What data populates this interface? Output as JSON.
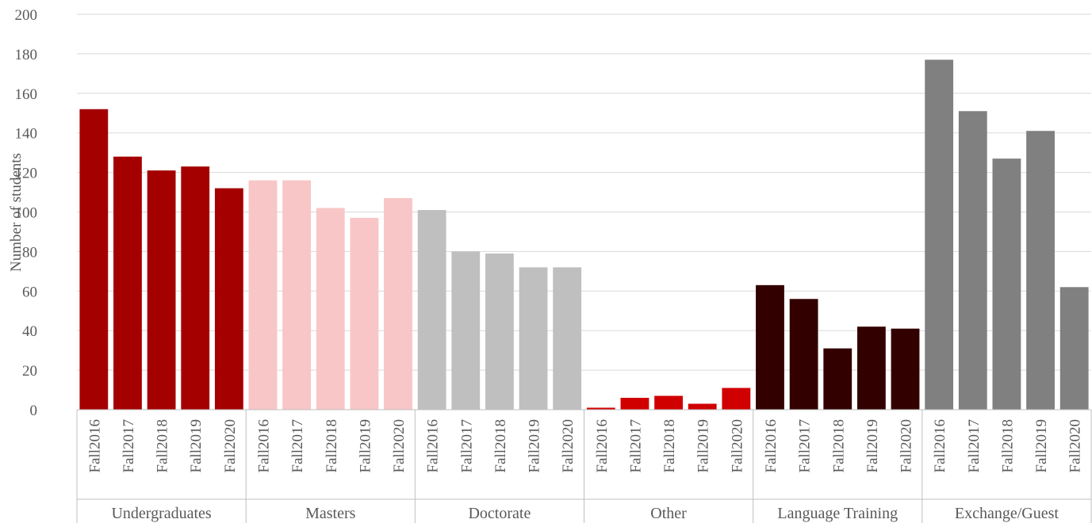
{
  "chart_data": {
    "type": "bar",
    "title": "",
    "xlabel": "",
    "ylabel": "Number of students",
    "ylim": [
      0,
      200
    ],
    "yticks": [
      0,
      20,
      40,
      60,
      80,
      100,
      120,
      140,
      160,
      180,
      200
    ],
    "grid": true,
    "legend": "none",
    "categories": [
      "Fall2016",
      "Fall2017",
      "Fall2018",
      "Fall2019",
      "Fall2020"
    ],
    "groups": [
      {
        "name": "Undergraduates",
        "color": "#A50000",
        "values": [
          152,
          128,
          121,
          123,
          112
        ]
      },
      {
        "name": "Masters",
        "color": "#F8C6C6",
        "values": [
          116,
          116,
          102,
          97,
          107
        ]
      },
      {
        "name": "Doctorate",
        "color": "#BFBFBF",
        "values": [
          101,
          80,
          79,
          72,
          72
        ]
      },
      {
        "name": "Other",
        "color": "#D00000",
        "values": [
          1,
          6,
          7,
          3,
          11
        ]
      },
      {
        "name": "Language Training",
        "color": "#330000",
        "values": [
          63,
          56,
          31,
          42,
          41
        ]
      },
      {
        "name": "Exchange/Guest",
        "color": "#808080",
        "values": [
          177,
          151,
          127,
          141,
          62
        ]
      }
    ]
  }
}
